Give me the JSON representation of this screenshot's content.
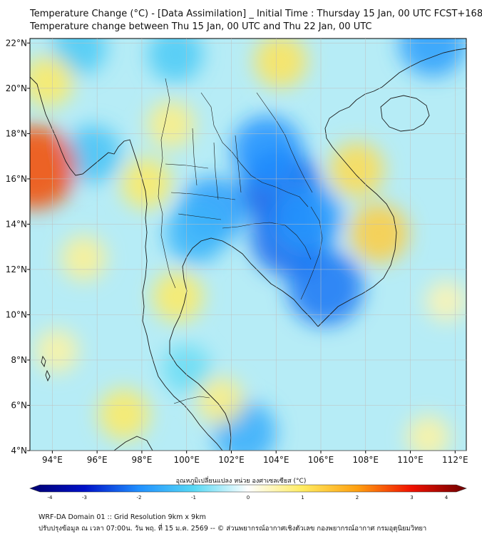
{
  "header": {
    "title_line1": "Temperature Change (°C) - [Data Assimilation] _ Initial Time : Thursday 15 Jan, 00 UTC FCST+168",
    "title_line2": "Temperature change between Thu 15 Jan, 00 UTC and Thu 22 Jan, 00 UTC"
  },
  "map": {
    "lon_range": [
      93,
      112.5
    ],
    "lat_range": [
      4,
      22.2
    ],
    "lon_ticks": [
      {
        "value": 94,
        "label": "94°E"
      },
      {
        "value": 96,
        "label": "96°E"
      },
      {
        "value": 98,
        "label": "98°E"
      },
      {
        "value": 100,
        "label": "100°E"
      },
      {
        "value": 102,
        "label": "102°E"
      },
      {
        "value": 104,
        "label": "104°E"
      },
      {
        "value": 106,
        "label": "106°E"
      },
      {
        "value": 108,
        "label": "108°E"
      },
      {
        "value": 110,
        "label": "110°E"
      },
      {
        "value": 112,
        "label": "112°E"
      }
    ],
    "lat_ticks": [
      {
        "value": 4,
        "label": "4°N"
      },
      {
        "value": 6,
        "label": "6°N"
      },
      {
        "value": 8,
        "label": "8°N"
      },
      {
        "value": 10,
        "label": "10°N"
      },
      {
        "value": 12,
        "label": "12°N"
      },
      {
        "value": 14,
        "label": "14°N"
      },
      {
        "value": 16,
        "label": "16°N"
      },
      {
        "value": 18,
        "label": "18°N"
      },
      {
        "value": 20,
        "label": "20°N"
      },
      {
        "value": 22,
        "label": "22°N"
      }
    ],
    "grid": true,
    "colors": {
      "background": "#b6ecf6",
      "coast": "#1a1a1a",
      "grid": "#bfbfbf"
    },
    "anomalies": [
      {
        "lon": 104.2,
        "lat": 15.6,
        "value": -2.4
      },
      {
        "lon": 103.6,
        "lat": 17.2,
        "value": -2.0
      },
      {
        "lon": 101.2,
        "lat": 14.6,
        "value": -1.8
      },
      {
        "lon": 104.6,
        "lat": 13.4,
        "value": -2.3
      },
      {
        "lon": 106.2,
        "lat": 11.2,
        "value": -2.2
      },
      {
        "lon": 100.4,
        "lat": 13.6,
        "value": -1.5
      },
      {
        "lon": 105.4,
        "lat": 14.3,
        "value": -1.9
      },
      {
        "lon": 102.6,
        "lat": 4.8,
        "value": -1.6
      },
      {
        "lon": 95.8,
        "lat": 17.1,
        "value": -1.3
      },
      {
        "lon": 95.2,
        "lat": 21.8,
        "value": -1.2
      },
      {
        "lon": 99.5,
        "lat": 21.5,
        "value": -1.2
      },
      {
        "lon": 111.0,
        "lat": 22.0,
        "value": -1.8
      },
      {
        "lon": 100.0,
        "lat": 7.6,
        "value": -0.9
      },
      {
        "lon": 93.2,
        "lat": 16.5,
        "value": 2.6
      },
      {
        "lon": 93.8,
        "lat": 20.3,
        "value": 1.0
      },
      {
        "lon": 95.4,
        "lat": 12.5,
        "value": 0.7
      },
      {
        "lon": 98.2,
        "lat": 15.8,
        "value": 1.0
      },
      {
        "lon": 99.3,
        "lat": 18.4,
        "value": 0.8
      },
      {
        "lon": 104.2,
        "lat": 21.2,
        "value": 1.1
      },
      {
        "lon": 107.6,
        "lat": 16.4,
        "value": 1.2
      },
      {
        "lon": 108.6,
        "lat": 13.6,
        "value": 1.4
      },
      {
        "lon": 99.6,
        "lat": 10.8,
        "value": 1.0
      },
      {
        "lon": 97.2,
        "lat": 5.6,
        "value": 1.0
      },
      {
        "lon": 101.5,
        "lat": 6.2,
        "value": 0.8
      },
      {
        "lon": 111.6,
        "lat": 10.6,
        "value": 0.5
      },
      {
        "lon": 110.8,
        "lat": 4.6,
        "value": 0.6
      },
      {
        "lon": 94.2,
        "lat": 8.4,
        "value": 0.6
      }
    ]
  },
  "colorbar": {
    "title": "อุณหภูมิเปลี่ยนแปลง หน่วย องศาเซลเซียส (°C)",
    "min": -4,
    "max": 4,
    "ticks": [
      {
        "value": -4,
        "label": "-4"
      },
      {
        "value": -3,
        "label": "-3"
      },
      {
        "value": -2,
        "label": "-2"
      },
      {
        "value": -1,
        "label": "-1"
      },
      {
        "value": 0,
        "label": "0"
      },
      {
        "value": 1,
        "label": "1"
      },
      {
        "value": 2,
        "label": "2"
      },
      {
        "value": 3,
        "label": "3"
      },
      {
        "value": 4,
        "label": "4"
      }
    ],
    "stops": [
      "#000070",
      "#0010c8",
      "#2090ff",
      "#56d8f4",
      "#ffffff",
      "#ffeb60",
      "#ffa010",
      "#f01000",
      "#6e0000"
    ]
  },
  "footer": {
    "line1": "WRF-DA Domain 01 :: Grid Resolution 9km x 9km",
    "line2": "ปรับปรุงข้อมูล ณ เวลา 07:00น. วัน พฤ. ที่ 15 ม.ค. 2569 -- © ส่วนพยากรณ์อากาศเชิงตัวเลข กองพยากรณ์อากาศ กรมอุตุนิยมวิทยา"
  }
}
